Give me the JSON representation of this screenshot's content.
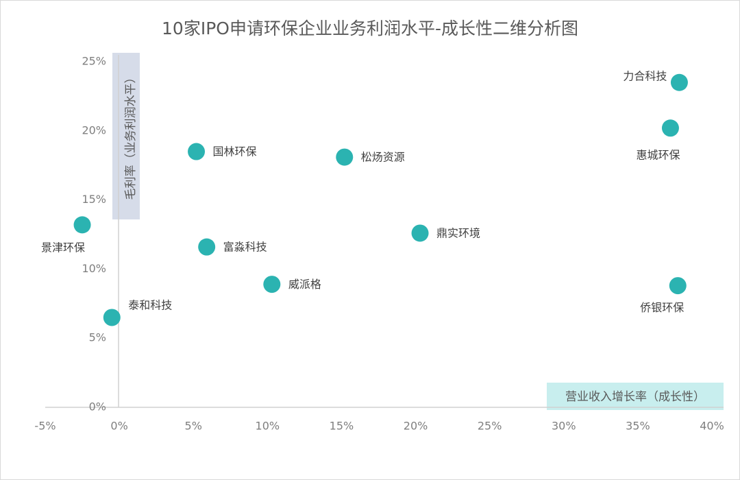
{
  "chart_data": {
    "type": "scatter",
    "title": "10家IPO申请环保企业业务利润水平-成长性二维分析图",
    "xlabel": "营业收入增长率（成长性）",
    "ylabel": "毛利率（业务利润水平）",
    "xlim": [
      -0.05,
      0.4
    ],
    "ylim": [
      0,
      0.25
    ],
    "x_ticks": [
      "-5%",
      "0%",
      "5%",
      "10%",
      "15%",
      "20%",
      "25%",
      "30%",
      "35%",
      "40%"
    ],
    "y_ticks": [
      "0%",
      "5%",
      "10%",
      "15%",
      "20%",
      "25%"
    ],
    "grid": false,
    "point_color": "#2bb3b1",
    "points": [
      {
        "label": "力合科技",
        "x": 0.378,
        "y": 0.235
      },
      {
        "label": "惠城环保",
        "x": 0.372,
        "y": 0.202
      },
      {
        "label": "国林环保",
        "x": 0.052,
        "y": 0.185
      },
      {
        "label": "松炀资源",
        "x": 0.152,
        "y": 0.181
      },
      {
        "label": "景津环保",
        "x": -0.025,
        "y": 0.132
      },
      {
        "label": "鼎实环境",
        "x": 0.203,
        "y": 0.126
      },
      {
        "label": "富淼科技",
        "x": 0.059,
        "y": 0.116
      },
      {
        "label": "威派格",
        "x": 0.103,
        "y": 0.089
      },
      {
        "label": "侨银环保",
        "x": 0.377,
        "y": 0.088
      },
      {
        "label": "泰和科技",
        "x": -0.005,
        "y": 0.065
      }
    ]
  }
}
